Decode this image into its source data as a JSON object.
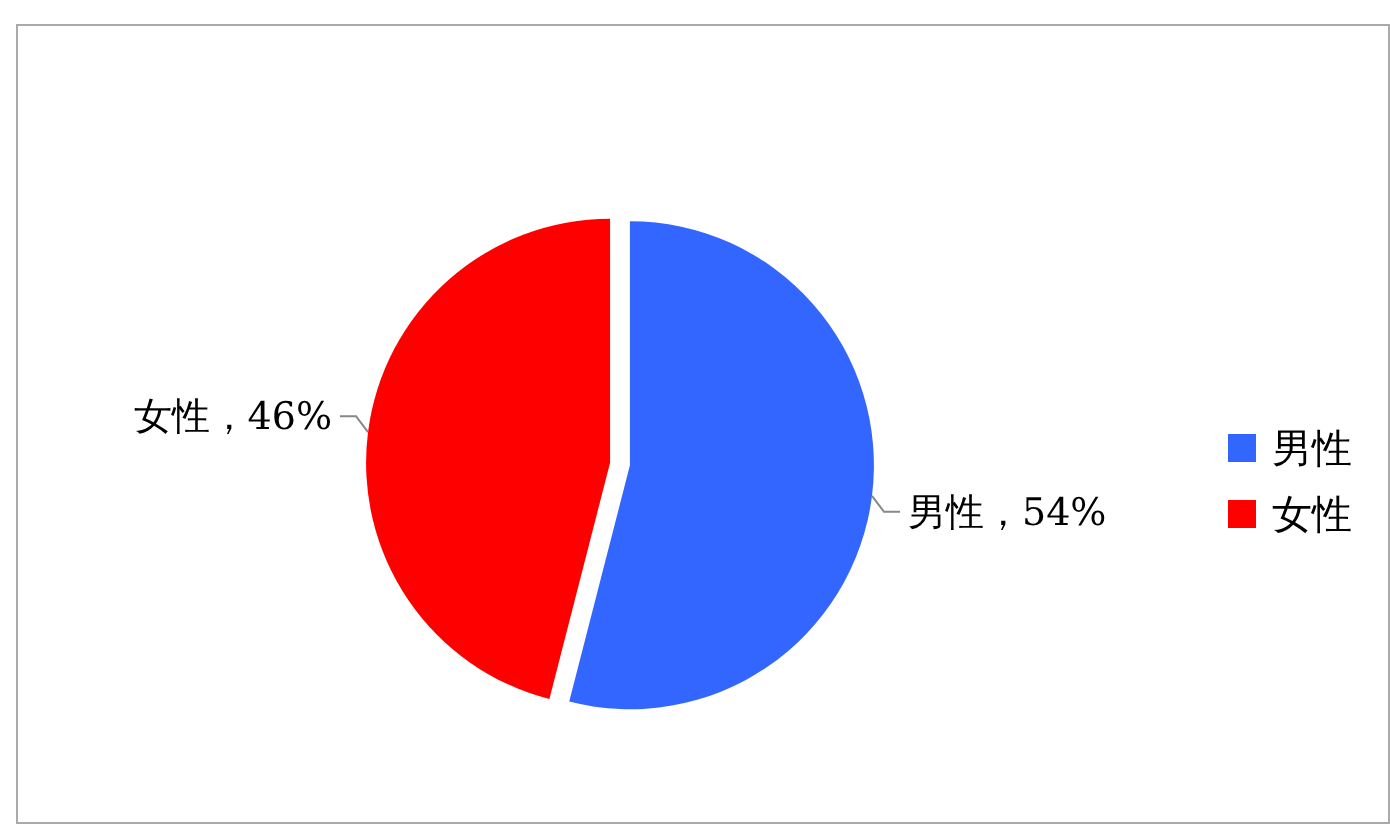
{
  "chart_data": {
    "type": "pie",
    "categories": [
      "男性",
      "女性"
    ],
    "values": [
      54,
      46
    ],
    "colors": [
      "#3366ff",
      "#ff0000"
    ],
    "value_labels": [
      "男性，54%",
      "女性，46%"
    ],
    "legend": "right"
  }
}
